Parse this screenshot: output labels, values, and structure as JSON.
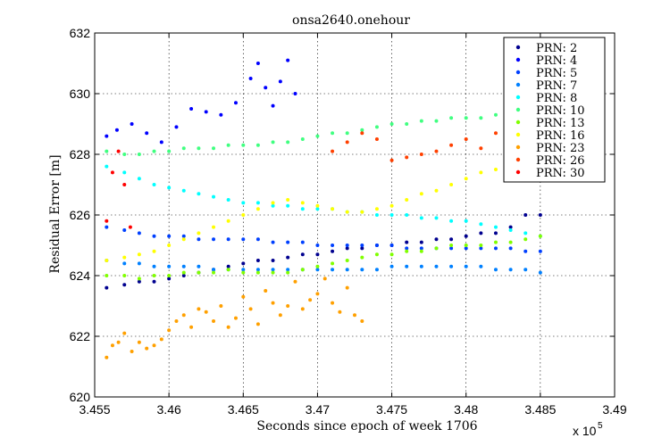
{
  "chart_data": {
    "type": "scatter",
    "title": "onsa2640.onehour",
    "xlabel": "Seconds since epoch of week 1706",
    "ylabel": "Residual Error [m]",
    "x_multiplier_label": "x 10",
    "x_multiplier_exponent": "5",
    "xlim": [
      345500,
      349000
    ],
    "ylim": [
      620,
      632
    ],
    "x_ticks": [
      345500,
      346000,
      346500,
      347000,
      347500,
      348000,
      348500,
      349000
    ],
    "x_tick_labels": [
      "3.455",
      "3.46",
      "3.465",
      "3.47",
      "3.475",
      "3.48",
      "3.485",
      "3.49"
    ],
    "y_ticks": [
      620,
      622,
      624,
      626,
      628,
      630,
      632
    ],
    "y_tick_labels": [
      "620",
      "622",
      "624",
      "626",
      "628",
      "630",
      "632"
    ],
    "grid": true,
    "legend_position": "top-right",
    "series": [
      {
        "name": "PRN: 2",
        "color": "#00008f",
        "x": [
          345580,
          345700,
          345800,
          345900,
          346000,
          346100,
          346200,
          346300,
          346400,
          346500,
          346600,
          346700,
          346800,
          346900,
          347000,
          347100,
          347200,
          347300,
          347400,
          347500,
          347600,
          347700,
          347800,
          347900,
          348000,
          348100,
          348200,
          348300,
          348400,
          348500
        ],
        "y": [
          623.6,
          623.7,
          623.8,
          623.8,
          623.9,
          624.0,
          624.1,
          624.2,
          624.3,
          624.4,
          624.5,
          624.5,
          624.6,
          624.7,
          624.7,
          624.8,
          624.9,
          624.9,
          625.0,
          625.0,
          625.1,
          625.1,
          625.2,
          625.2,
          625.3,
          625.4,
          625.4,
          625.6,
          626.0,
          626.0
        ]
      },
      {
        "name": "PRN: 4",
        "color": "#0000ff",
        "x": [
          345580,
          345650,
          345750,
          345850,
          345950,
          346050,
          346150,
          346250,
          346350,
          346450,
          346550,
          346600,
          346650,
          346700,
          346750,
          346800,
          346850
        ],
        "y": [
          628.6,
          628.8,
          629.0,
          628.7,
          628.4,
          628.9,
          629.5,
          629.4,
          629.3,
          629.7,
          630.5,
          631.0,
          630.2,
          629.6,
          630.4,
          631.1,
          630.0
        ]
      },
      {
        "name": "PRN: 5",
        "color": "#0040ff",
        "x": [
          345580,
          345700,
          345800,
          345900,
          346000,
          346100,
          346200,
          346300,
          346400,
          346500,
          346600,
          346700,
          346800,
          346900,
          347000,
          347100,
          347200,
          347300,
          347400,
          347500,
          347600,
          347700,
          347800,
          347900,
          348000,
          348100,
          348200,
          348300,
          348400,
          348500
        ],
        "y": [
          625.6,
          625.5,
          625.4,
          625.3,
          625.3,
          625.3,
          625.2,
          625.2,
          625.2,
          625.2,
          625.2,
          625.1,
          625.1,
          625.1,
          625.0,
          625.0,
          625.0,
          625.0,
          625.0,
          625.0,
          624.9,
          624.9,
          624.9,
          624.9,
          624.9,
          624.9,
          624.9,
          624.9,
          624.8,
          624.8
        ]
      },
      {
        "name": "PRN: 7",
        "color": "#0080ff",
        "x": [
          345580,
          345700,
          345800,
          345900,
          346000,
          346100,
          346200,
          346300,
          346400,
          346500,
          346600,
          346700,
          346800,
          346900,
          347000,
          347100,
          347200,
          347300,
          347400,
          347500,
          347600,
          347700,
          347800,
          347900,
          348000,
          348100,
          348200,
          348300,
          348400,
          348500
        ],
        "y": [
          624.5,
          624.4,
          624.4,
          624.3,
          624.3,
          624.3,
          624.3,
          624.2,
          624.2,
          624.2,
          624.2,
          624.2,
          624.2,
          624.2,
          624.2,
          624.2,
          624.2,
          624.2,
          624.2,
          624.3,
          624.3,
          624.3,
          624.3,
          624.3,
          624.3,
          624.3,
          624.2,
          624.2,
          624.2,
          624.1
        ]
      },
      {
        "name": "PRN: 8",
        "color": "#00ffff",
        "x": [
          345580,
          345700,
          345800,
          345900,
          346000,
          346100,
          346200,
          346300,
          346400,
          346500,
          346600,
          346700,
          346800,
          346900,
          347000,
          347100,
          347200,
          347300,
          347400,
          347500,
          347600,
          347700,
          347800,
          347900,
          348000,
          348100,
          348200,
          348300,
          348400,
          348500
        ],
        "y": [
          627.6,
          627.4,
          627.2,
          627.0,
          626.9,
          626.8,
          626.7,
          626.6,
          626.5,
          626.4,
          626.4,
          626.3,
          626.3,
          626.2,
          626.2,
          626.2,
          626.1,
          626.1,
          626.0,
          626.0,
          626.0,
          625.9,
          625.9,
          625.8,
          625.8,
          625.7,
          625.6,
          625.5,
          625.4,
          625.3
        ]
      },
      {
        "name": "PRN: 10",
        "color": "#40ff80",
        "x": [
          345580,
          345700,
          345800,
          345900,
          346000,
          346100,
          346200,
          346300,
          346400,
          346500,
          346600,
          346700,
          346800,
          346900,
          347000,
          347100,
          347200,
          347300,
          347400,
          347500,
          347600,
          347700,
          347800,
          347900,
          348000,
          348100,
          348200,
          348300,
          348400,
          348500
        ],
        "y": [
          628.1,
          628.0,
          628.0,
          628.1,
          628.1,
          628.2,
          628.2,
          628.2,
          628.3,
          628.3,
          628.3,
          628.4,
          628.4,
          628.5,
          628.6,
          628.7,
          628.7,
          628.8,
          628.9,
          629.0,
          629.0,
          629.1,
          629.1,
          629.2,
          629.2,
          629.2,
          629.3,
          629.3,
          629.2,
          629.2
        ]
      },
      {
        "name": "PRN: 13",
        "color": "#80ff00",
        "x": [
          345580,
          345700,
          345800,
          345900,
          346000,
          346100,
          346200,
          346300,
          346400,
          346500,
          346600,
          346700,
          346800,
          346900,
          347000,
          347100,
          347200,
          347300,
          347400,
          347500,
          347600,
          347700,
          347800,
          347900,
          348000,
          348100,
          348200,
          348300,
          348400,
          348500
        ],
        "y": [
          624.0,
          624.0,
          623.9,
          624.0,
          624.0,
          624.1,
          624.1,
          624.1,
          624.2,
          624.1,
          624.1,
          624.1,
          624.1,
          624.2,
          624.3,
          624.4,
          624.5,
          624.6,
          624.7,
          624.7,
          624.8,
          624.8,
          624.9,
          625.0,
          625.0,
          625.0,
          625.1,
          625.1,
          625.2,
          625.3
        ]
      },
      {
        "name": "PRN: 16",
        "color": "#ffff00",
        "x": [
          345580,
          345700,
          345800,
          345900,
          346000,
          346100,
          346200,
          346300,
          346400,
          346500,
          346600,
          346700,
          346800,
          346900,
          347000,
          347100,
          347200,
          347300,
          347400,
          347500,
          347600,
          347700,
          347800,
          347900,
          348000,
          348100,
          348200,
          348300,
          348400,
          348500
        ],
        "y": [
          624.5,
          624.6,
          624.7,
          624.8,
          625.0,
          625.2,
          625.4,
          625.6,
          625.8,
          626.0,
          626.2,
          626.4,
          626.5,
          626.4,
          626.3,
          626.2,
          626.1,
          626.1,
          626.2,
          626.3,
          626.5,
          626.7,
          626.8,
          627.0,
          627.2,
          627.4,
          627.5,
          627.6,
          627.8,
          628.0
        ]
      },
      {
        "name": "PRN: 23",
        "color": "#ffa000",
        "x": [
          345580,
          345620,
          345660,
          345700,
          345750,
          345800,
          345850,
          345900,
          345950,
          346000,
          346050,
          346100,
          346150,
          346200,
          346250,
          346300,
          346350,
          346400,
          346450,
          346500,
          346550,
          346600,
          346650,
          346700,
          346750,
          346800,
          346850,
          346900,
          346950,
          347000,
          347050,
          347100,
          347150,
          347200,
          347250,
          347300
        ],
        "y": [
          621.3,
          621.7,
          621.8,
          622.1,
          621.5,
          621.8,
          621.6,
          621.7,
          621.9,
          622.2,
          622.5,
          622.7,
          622.3,
          622.9,
          622.8,
          622.5,
          623.0,
          622.3,
          622.6,
          623.3,
          622.9,
          622.4,
          623.5,
          623.1,
          622.7,
          623.0,
          623.8,
          622.9,
          623.2,
          623.4,
          623.9,
          623.1,
          622.8,
          623.6,
          622.7,
          622.5
        ]
      },
      {
        "name": "PRN: 26",
        "color": "#ff4000",
        "x": [
          347100,
          347200,
          347300,
          347400,
          347500,
          347600,
          347700,
          347800,
          347900,
          348000,
          348100,
          348200,
          348300,
          348400
        ],
        "y": [
          628.1,
          628.4,
          628.7,
          628.5,
          627.8,
          627.9,
          628.0,
          628.1,
          628.3,
          628.5,
          628.2,
          628.7,
          629.0,
          628.3
        ]
      },
      {
        "name": "PRN: 30",
        "color": "#ff0000",
        "x": [
          345580,
          345620,
          345660,
          345700,
          345740
        ],
        "y": [
          625.8,
          627.4,
          628.1,
          627.0,
          625.6
        ]
      }
    ]
  }
}
